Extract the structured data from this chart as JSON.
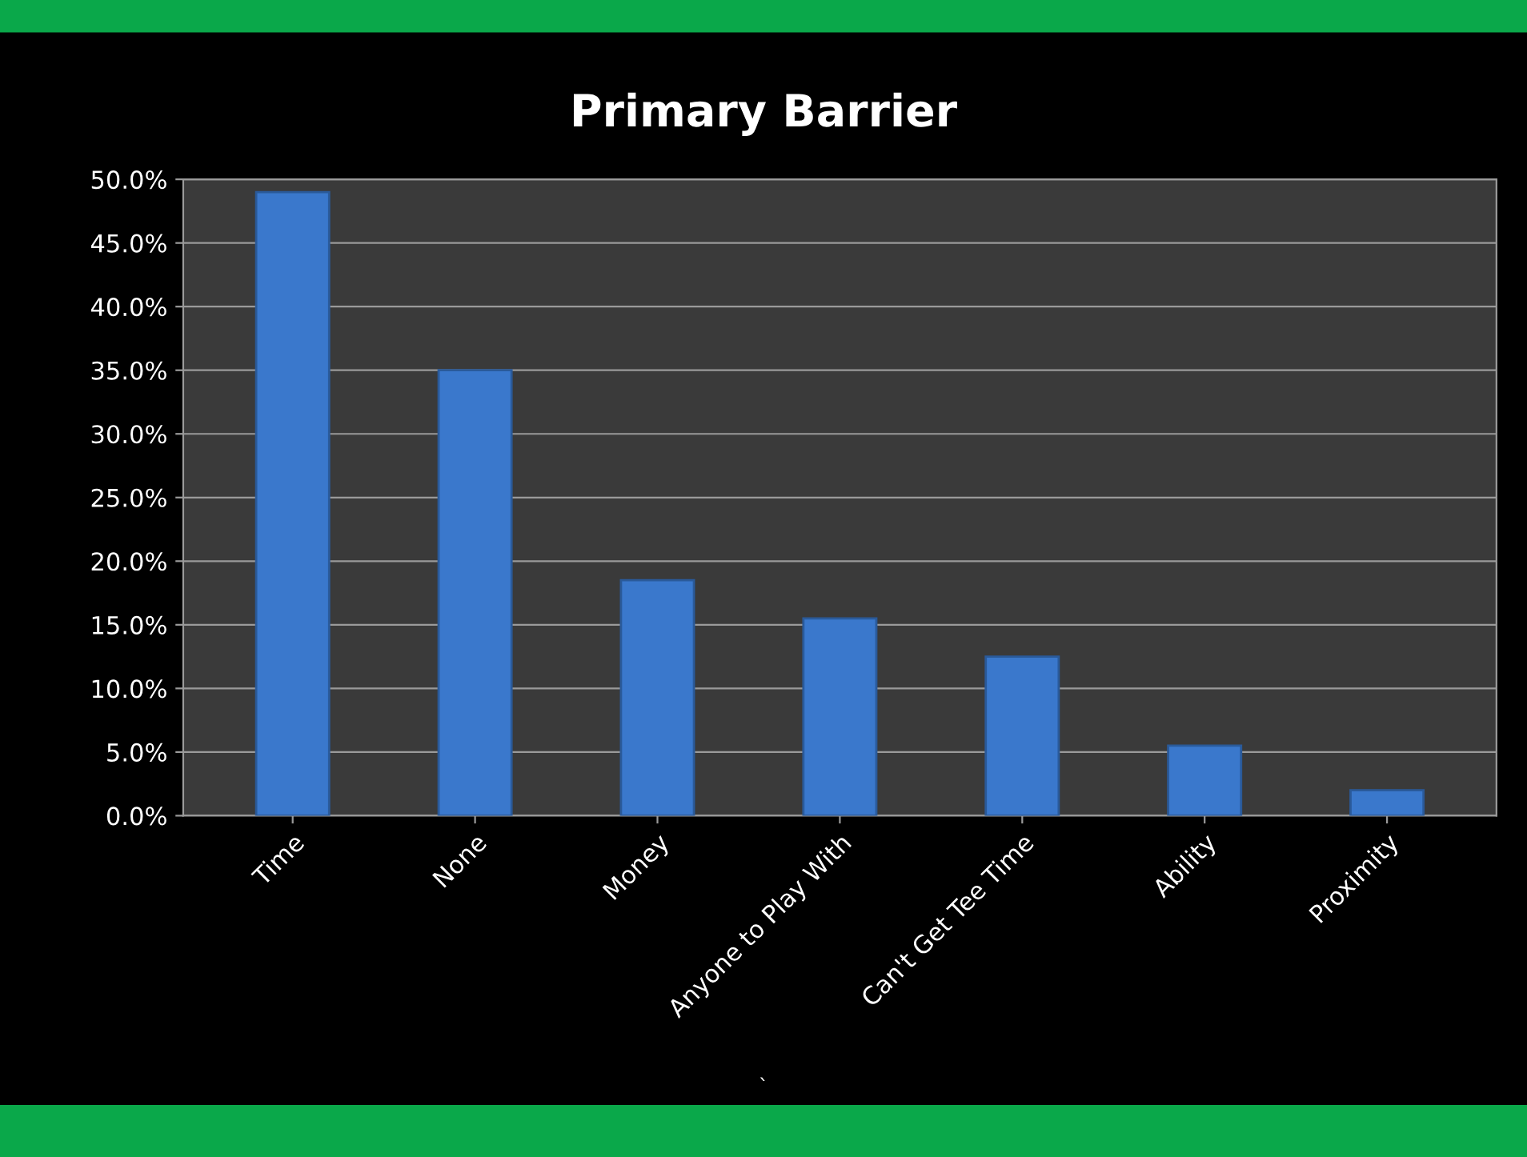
{
  "chart_data": {
    "type": "bar",
    "title": "Primary Barrier",
    "categories": [
      "Time",
      "None",
      "Money",
      "Anyone to Play With",
      "Can't Get Tee Time",
      "Ability",
      "Proximity"
    ],
    "values": [
      49,
      35,
      18.5,
      15.5,
      12.5,
      5.5,
      2
    ],
    "color": "#3a78cc",
    "ylim": [
      0,
      50
    ],
    "yticks": [
      {
        "value": 0,
        "label": "0.0%"
      },
      {
        "value": 5,
        "label": "5.0%"
      },
      {
        "value": 10,
        "label": "10.0%"
      },
      {
        "value": 15,
        "label": "15.0%"
      },
      {
        "value": 20,
        "label": "20.0%"
      },
      {
        "value": 25,
        "label": "25.0%"
      },
      {
        "value": 30,
        "label": "30.0%"
      },
      {
        "value": 35,
        "label": "35.0%"
      },
      {
        "value": 40,
        "label": "40.0%"
      },
      {
        "value": 45,
        "label": "45.0%"
      },
      {
        "value": 50,
        "label": "50.0%"
      }
    ],
    "grid": "y",
    "annotations": [
      "`"
    ]
  }
}
